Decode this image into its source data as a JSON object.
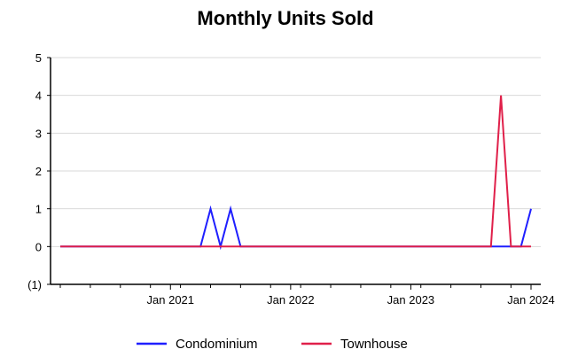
{
  "chart_data": {
    "type": "line",
    "title": "Monthly Units Sold",
    "xlabel": "",
    "ylabel": "",
    "x_range": [
      "2020-02",
      "2024-01"
    ],
    "ylim": [
      -1,
      5
    ],
    "y_ticks": [
      -1,
      0,
      1,
      2,
      3,
      4,
      5
    ],
    "y_tick_labels": [
      "(1)",
      "0",
      "1",
      "2",
      "3",
      "4",
      "5"
    ],
    "x_tick_labels": [
      {
        "label": "Jan 2021",
        "date": "2021-01"
      },
      {
        "label": "Jan 2022",
        "date": "2022-01"
      },
      {
        "label": "Jan 2023",
        "date": "2023-01"
      },
      {
        "label": "Jan 2024",
        "date": "2024-01"
      }
    ],
    "grid": "horizontal",
    "legend_position": "bottom",
    "colors": {
      "condominium": "#1f1fff",
      "townhouse": "#e0204a",
      "grid": "#d9d9d9",
      "axis": "#000000"
    },
    "series": [
      {
        "name": "Condominium",
        "color": "#1f1fff",
        "points": [
          [
            "2020-02",
            0
          ],
          [
            "2021-04",
            0
          ],
          [
            "2021-05",
            1
          ],
          [
            "2021-06",
            0
          ],
          [
            "2021-07",
            1
          ],
          [
            "2021-08",
            0
          ],
          [
            "2023-12",
            0
          ],
          [
            "2024-01",
            1
          ]
        ]
      },
      {
        "name": "Townhouse",
        "color": "#e0204a",
        "points": [
          [
            "2020-02",
            0
          ],
          [
            "2023-09",
            0
          ],
          [
            "2023-10",
            4
          ],
          [
            "2023-11",
            0
          ],
          [
            "2024-01",
            0
          ]
        ]
      }
    ]
  }
}
